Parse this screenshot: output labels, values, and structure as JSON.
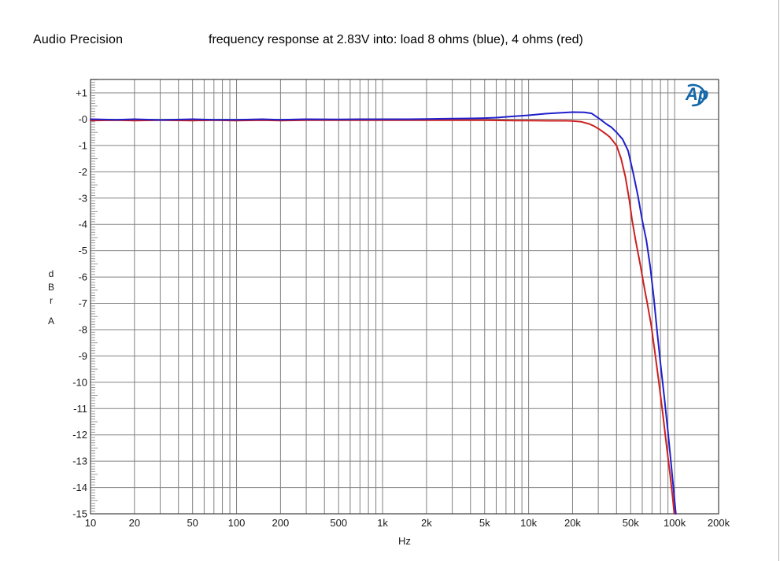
{
  "header": {
    "brand": "Audio Precision",
    "title": "frequency response at 2.83V into: load 8 ohms (blue), 4 ohms (red)"
  },
  "logo": {
    "text": "Ap",
    "color": "#1467a8"
  },
  "colors": {
    "grid": "#808080",
    "frame": "#404040",
    "minor_tick": "#999999",
    "blue_trace": "#2020cc",
    "red_trace": "#cc2020"
  },
  "chart_data": {
    "type": "line",
    "title": "frequency response at 2.83V into: load 8 ohms (blue), 4 ohms (red)",
    "xlabel": "Hz",
    "ylabel_lines": [
      "d",
      "B",
      "r"
    ],
    "ylabel_suffix": "A",
    "x_scale": "log",
    "grid": true,
    "xlim": [
      10,
      200000
    ],
    "ylim": [
      -15,
      1.51
    ],
    "x_ticks": [
      {
        "v": 10,
        "label": "10"
      },
      {
        "v": 20,
        "label": "20"
      },
      {
        "v": 50,
        "label": "50"
      },
      {
        "v": 100,
        "label": "100"
      },
      {
        "v": 200,
        "label": "200"
      },
      {
        "v": 500,
        "label": "500"
      },
      {
        "v": 1000,
        "label": "1k"
      },
      {
        "v": 2000,
        "label": "2k"
      },
      {
        "v": 5000,
        "label": "5k"
      },
      {
        "v": 10000,
        "label": "10k"
      },
      {
        "v": 20000,
        "label": "20k"
      },
      {
        "v": 50000,
        "label": "50k"
      },
      {
        "v": 100000,
        "label": "100k"
      },
      {
        "v": 200000,
        "label": "200k"
      }
    ],
    "y_ticks": [
      {
        "v": 1,
        "label": "+1"
      },
      {
        "v": 0,
        "label": "-0"
      },
      {
        "v": -1,
        "label": "-1"
      },
      {
        "v": -2,
        "label": "-2"
      },
      {
        "v": -3,
        "label": "-3"
      },
      {
        "v": -4,
        "label": "-4"
      },
      {
        "v": -5,
        "label": "-5"
      },
      {
        "v": -6,
        "label": "-6"
      },
      {
        "v": -7,
        "label": "-7"
      },
      {
        "v": -8,
        "label": "-8"
      },
      {
        "v": -9,
        "label": "-9"
      },
      {
        "v": -10,
        "label": "-10"
      },
      {
        "v": -11,
        "label": "-11"
      },
      {
        "v": -12,
        "label": "-12"
      },
      {
        "v": -13,
        "label": "-13"
      },
      {
        "v": -14,
        "label": "-14"
      },
      {
        "v": -15,
        "label": "-15"
      }
    ],
    "series": [
      {
        "name": "4 ohms",
        "color": "#cc2020",
        "points": [
          [
            10,
            -0.05
          ],
          [
            15,
            -0.04
          ],
          [
            20,
            -0.05
          ],
          [
            30,
            -0.04
          ],
          [
            50,
            -0.05
          ],
          [
            70,
            -0.04
          ],
          [
            100,
            -0.05
          ],
          [
            150,
            -0.04
          ],
          [
            200,
            -0.05
          ],
          [
            300,
            -0.04
          ],
          [
            500,
            -0.04
          ],
          [
            700,
            -0.04
          ],
          [
            1000,
            -0.04
          ],
          [
            2000,
            -0.04
          ],
          [
            3000,
            -0.04
          ],
          [
            5000,
            -0.04
          ],
          [
            8000,
            -0.05
          ],
          [
            10000,
            -0.05
          ],
          [
            14000,
            -0.06
          ],
          [
            18000,
            -0.06
          ],
          [
            20000,
            -0.07
          ],
          [
            23000,
            -0.1
          ],
          [
            26000,
            -0.18
          ],
          [
            28000,
            -0.26
          ],
          [
            31000,
            -0.41
          ],
          [
            34000,
            -0.57
          ],
          [
            36000,
            -0.68
          ],
          [
            40000,
            -1.0
          ],
          [
            43000,
            -1.5
          ],
          [
            46000,
            -2.2
          ],
          [
            49000,
            -3.1
          ],
          [
            51000,
            -3.8
          ],
          [
            54000,
            -4.6
          ],
          [
            58000,
            -5.5
          ],
          [
            62000,
            -6.4
          ],
          [
            65000,
            -7.0
          ],
          [
            69000,
            -7.8
          ],
          [
            73000,
            -8.8
          ],
          [
            78000,
            -10.0
          ],
          [
            83000,
            -11.2
          ],
          [
            88000,
            -12.4
          ],
          [
            93000,
            -13.5
          ],
          [
            97000,
            -14.4
          ],
          [
            99500,
            -15.0
          ]
        ]
      },
      {
        "name": "8 ohms",
        "color": "#2020cc",
        "points": [
          [
            10,
            0.0
          ],
          [
            15,
            -0.02
          ],
          [
            20,
            0.0
          ],
          [
            30,
            -0.03
          ],
          [
            50,
            0.0
          ],
          [
            70,
            -0.02
          ],
          [
            100,
            -0.02
          ],
          [
            150,
            0.0
          ],
          [
            200,
            -0.02
          ],
          [
            300,
            0.0
          ],
          [
            500,
            -0.01
          ],
          [
            700,
            0.0
          ],
          [
            1000,
            0.0
          ],
          [
            1500,
            0.0
          ],
          [
            2000,
            0.01
          ],
          [
            3000,
            0.02
          ],
          [
            4000,
            0.03
          ],
          [
            5000,
            0.04
          ],
          [
            6000,
            0.06
          ],
          [
            8000,
            0.11
          ],
          [
            10000,
            0.15
          ],
          [
            13000,
            0.21
          ],
          [
            16000,
            0.24
          ],
          [
            20000,
            0.27
          ],
          [
            24000,
            0.26
          ],
          [
            27000,
            0.22
          ],
          [
            31000,
            -0.01
          ],
          [
            34000,
            -0.18
          ],
          [
            37000,
            -0.31
          ],
          [
            40000,
            -0.5
          ],
          [
            44000,
            -0.76
          ],
          [
            48000,
            -1.2
          ],
          [
            52000,
            -2.05
          ],
          [
            56000,
            -2.9
          ],
          [
            60000,
            -3.85
          ],
          [
            64000,
            -4.6
          ],
          [
            68000,
            -5.6
          ],
          [
            72000,
            -6.8
          ],
          [
            76000,
            -8.1
          ],
          [
            80000,
            -9.3
          ],
          [
            85000,
            -10.6
          ],
          [
            90000,
            -11.9
          ],
          [
            95000,
            -13.2
          ],
          [
            100000,
            -14.5
          ],
          [
            102000,
            -15.0
          ]
        ]
      }
    ]
  }
}
